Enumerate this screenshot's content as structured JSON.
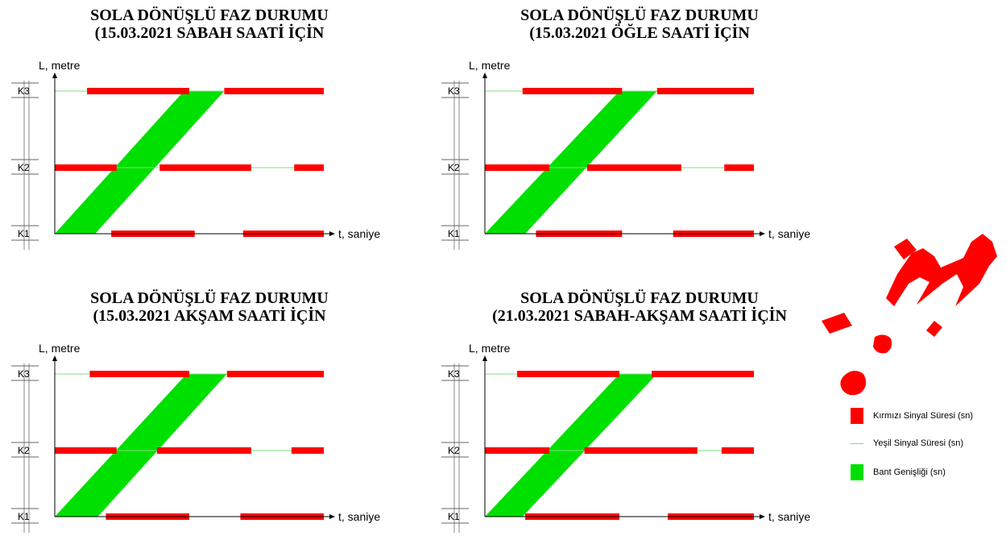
{
  "panels": [
    {
      "title_line1": "SOLA DÖNÜŞLÜ FAZ DURUMU",
      "title_line2": "(15.03.2021 SABAH SAATİ İÇİN",
      "y_axis_label": "L, metre",
      "x_axis_label": "t, saniye",
      "levels": [
        "K1",
        "K2",
        "K3"
      ],
      "signals": {
        "K1": [
          [
            0,
            0.21,
            "green"
          ],
          [
            0.21,
            0.52,
            "red"
          ],
          [
            0.52,
            0.7,
            "green"
          ],
          [
            0.7,
            1.0,
            "red"
          ]
        ],
        "K2": [
          [
            0,
            0.23,
            "red"
          ],
          [
            0.23,
            0.39,
            "green"
          ],
          [
            0.39,
            0.73,
            "red"
          ],
          [
            0.73,
            0.89,
            "green"
          ],
          [
            0.89,
            1.0,
            "red"
          ]
        ],
        "K3": [
          [
            0,
            0.12,
            "green"
          ],
          [
            0.12,
            0.5,
            "red"
          ],
          [
            0.5,
            0.63,
            "green"
          ],
          [
            0.63,
            1.0,
            "red"
          ]
        ]
      },
      "band": {
        "bottom_start": 0.0,
        "bottom_end": 0.15,
        "top_start": 0.48,
        "top_end": 0.63
      }
    },
    {
      "title_line1": "SOLA DÖNÜŞLÜ FAZ DURUMU",
      "title_line2": "(15.03.2021 ÖĞLE SAATİ İÇİN",
      "y_axis_label": "L, metre",
      "x_axis_label": "t, saniye",
      "levels": [
        "K1",
        "K2",
        "K3"
      ],
      "signals": {
        "K1": [
          [
            0,
            0.19,
            "green"
          ],
          [
            0.19,
            0.51,
            "red"
          ],
          [
            0.51,
            0.7,
            "green"
          ],
          [
            0.7,
            1.0,
            "red"
          ]
        ],
        "K2": [
          [
            0,
            0.24,
            "red"
          ],
          [
            0.24,
            0.38,
            "green"
          ],
          [
            0.38,
            0.73,
            "red"
          ],
          [
            0.73,
            0.89,
            "green"
          ],
          [
            0.89,
            1.0,
            "red"
          ]
        ],
        "K3": [
          [
            0,
            0.14,
            "green"
          ],
          [
            0.14,
            0.51,
            "red"
          ],
          [
            0.51,
            0.64,
            "green"
          ],
          [
            0.64,
            1.0,
            "red"
          ]
        ]
      },
      "band": {
        "bottom_start": 0.0,
        "bottom_end": 0.15,
        "top_start": 0.5,
        "top_end": 0.64
      }
    },
    {
      "title_line1": "SOLA DÖNÜŞLÜ FAZ DURUMU",
      "title_line2": "(15.03.2021 AKŞAM SAATİ İÇİN",
      "y_axis_label": "L, metre",
      "x_axis_label": "t, saniye",
      "levels": [
        "K1",
        "K2",
        "K3"
      ],
      "signals": {
        "K1": [
          [
            0,
            0.19,
            "green"
          ],
          [
            0.19,
            0.5,
            "red"
          ],
          [
            0.5,
            0.69,
            "green"
          ],
          [
            0.69,
            1.0,
            "red"
          ]
        ],
        "K2": [
          [
            0,
            0.23,
            "red"
          ],
          [
            0.23,
            0.38,
            "green"
          ],
          [
            0.38,
            0.73,
            "red"
          ],
          [
            0.73,
            0.88,
            "green"
          ],
          [
            0.88,
            1.0,
            "red"
          ]
        ],
        "K3": [
          [
            0,
            0.13,
            "green"
          ],
          [
            0.13,
            0.5,
            "red"
          ],
          [
            0.5,
            0.64,
            "green"
          ],
          [
            0.64,
            1.0,
            "red"
          ]
        ]
      },
      "band": {
        "bottom_start": 0.0,
        "bottom_end": 0.16,
        "top_start": 0.49,
        "top_end": 0.64
      }
    },
    {
      "title_line1": "SOLA DÖNÜŞLÜ FAZ DURUMU",
      "title_line2": "(21.03.2021 SABAH-AKŞAM SAATİ İÇİN",
      "y_axis_label": "L, metre",
      "x_axis_label": "t, saniye",
      "levels": [
        "K1",
        "K2",
        "K3"
      ],
      "signals": {
        "K1": [
          [
            0,
            0.15,
            "green"
          ],
          [
            0.15,
            0.5,
            "red"
          ],
          [
            0.5,
            0.68,
            "green"
          ],
          [
            0.68,
            1.0,
            "red"
          ]
        ],
        "K2": [
          [
            0,
            0.24,
            "red"
          ],
          [
            0.24,
            0.37,
            "green"
          ],
          [
            0.37,
            0.79,
            "red"
          ],
          [
            0.79,
            0.88,
            "green"
          ],
          [
            0.88,
            1.0,
            "red"
          ]
        ],
        "K3": [
          [
            0,
            0.12,
            "green"
          ],
          [
            0.12,
            0.5,
            "red"
          ],
          [
            0.5,
            0.62,
            "green"
          ],
          [
            0.62,
            1.0,
            "red"
          ]
        ]
      },
      "band": {
        "bottom_start": 0.0,
        "bottom_end": 0.14,
        "top_start": 0.5,
        "top_end": 0.64
      }
    }
  ],
  "legend": {
    "red_label": "Kırmızı Sinyal Süresi (sn)",
    "green_label": "Yeşil Sinyal Süresi (sn)",
    "band_label": "Bant Genişliği (sn)"
  },
  "colors": {
    "red": "#ff0000",
    "green_line": "#7fe07f",
    "band": "#00e000",
    "axis": "#000000",
    "watermark": "#ff0000"
  },
  "watermark": {
    "text": "İ.M"
  }
}
